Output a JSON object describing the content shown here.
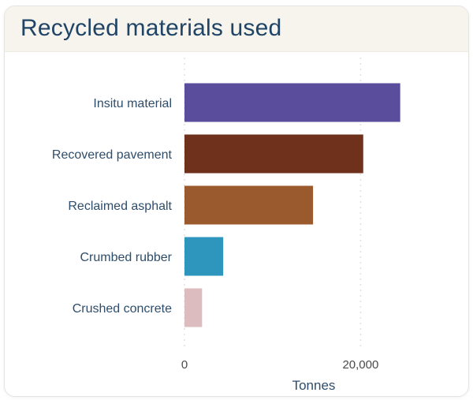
{
  "title": "Recycled materials used",
  "chart_data": {
    "type": "bar",
    "orientation": "horizontal",
    "categories": [
      "Insitu material",
      "Recovered pavement",
      "Reclaimed asphalt",
      "Crumbed rubber",
      "Crushed concrete"
    ],
    "values": [
      24500,
      20300,
      14600,
      4400,
      2000
    ],
    "colors": [
      "#5a4d9b",
      "#6f311b",
      "#9b5a2d",
      "#2e95bd",
      "#ddbcc0"
    ],
    "xlabel": "Tonnes",
    "xlim": [
      0,
      34000
    ],
    "x_ticks": [
      0,
      20000
    ],
    "x_tick_labels": [
      "0",
      "20,000"
    ],
    "grid": true
  }
}
